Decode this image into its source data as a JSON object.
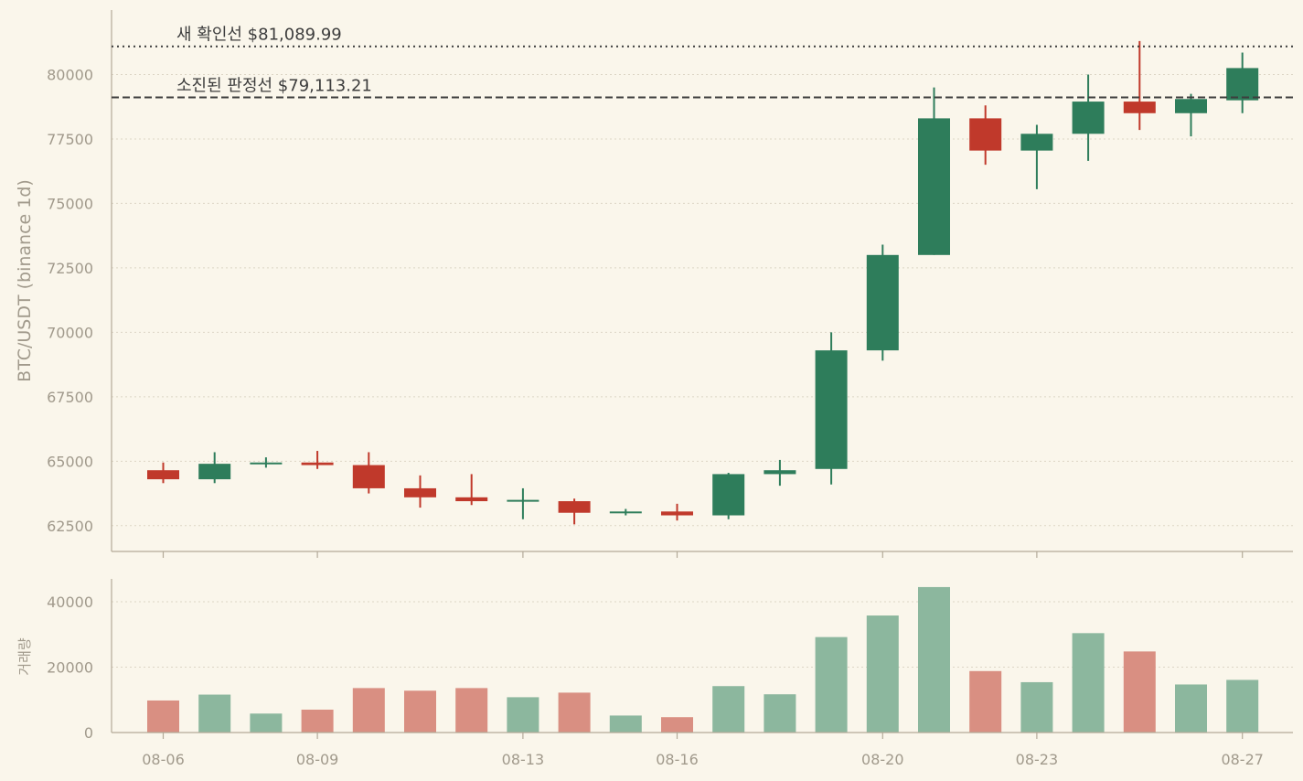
{
  "chart_data": [
    {
      "type": "candlestick",
      "ylabel": "BTC/USDT (binance 1d)",
      "ylim": [
        61500,
        82500
      ],
      "yticks": [
        62500,
        65000,
        67500,
        70000,
        72500,
        75000,
        77500,
        80000
      ],
      "grid": "horizontal dotted",
      "colors": {
        "up": "#2e7d5b",
        "down": "#c0392b"
      },
      "annotations": [
        {
          "label": "새 확인선 $81,089.99",
          "value": 81089.99,
          "style": "dotted"
        },
        {
          "label": "소진된 판정선 $79,113.21",
          "value": 79113.21,
          "style": "dashed"
        }
      ],
      "candles": [
        {
          "date": "08-06",
          "open": 64650,
          "high": 64950,
          "close": 64300,
          "low": 64150
        },
        {
          "date": "08-07",
          "open": 64300,
          "high": 65350,
          "close": 64900,
          "low": 64150
        },
        {
          "date": "08-08",
          "open": 64900,
          "high": 65150,
          "close": 64950,
          "low": 64750
        },
        {
          "date": "08-09",
          "open": 64950,
          "high": 65400,
          "close": 64850,
          "low": 64700
        },
        {
          "date": "08-10",
          "open": 64850,
          "high": 65350,
          "close": 63950,
          "low": 63750
        },
        {
          "date": "08-11",
          "open": 63950,
          "high": 64450,
          "close": 63600,
          "low": 63200
        },
        {
          "date": "08-12",
          "open": 63600,
          "high": 64500,
          "close": 63450,
          "low": 63300
        },
        {
          "date": "08-13",
          "open": 63450,
          "high": 63950,
          "close": 63500,
          "low": 62750
        },
        {
          "date": "08-14",
          "open": 63450,
          "high": 63550,
          "close": 63000,
          "low": 62550
        },
        {
          "date": "08-15",
          "open": 63000,
          "high": 63150,
          "close": 63050,
          "low": 62900
        },
        {
          "date": "08-16",
          "open": 63050,
          "high": 63350,
          "close": 62900,
          "low": 62700
        },
        {
          "date": "08-17",
          "open": 62900,
          "high": 64550,
          "close": 64500,
          "low": 62750
        },
        {
          "date": "08-18",
          "open": 64500,
          "high": 65050,
          "close": 64650,
          "low": 64050
        },
        {
          "date": "08-19",
          "open": 64700,
          "high": 70000,
          "close": 69300,
          "low": 64100
        },
        {
          "date": "08-20",
          "open": 69300,
          "high": 73400,
          "close": 73000,
          "low": 68900
        },
        {
          "date": "08-21",
          "open": 73000,
          "high": 79500,
          "close": 78300,
          "low": 73000
        },
        {
          "date": "08-22",
          "open": 78300,
          "high": 78800,
          "close": 77050,
          "low": 76500
        },
        {
          "date": "08-23",
          "open": 77050,
          "high": 78050,
          "close": 77700,
          "low": 75550
        },
        {
          "date": "08-24",
          "open": 77700,
          "high": 80000,
          "close": 78950,
          "low": 76650
        },
        {
          "date": "08-25",
          "open": 78950,
          "high": 81300,
          "close": 78500,
          "low": 77850
        },
        {
          "date": "08-26",
          "open": 78500,
          "high": 79250,
          "close": 79050,
          "low": 77600
        },
        {
          "date": "08-27",
          "open": 79000,
          "high": 80850,
          "close": 80250,
          "low": 78500
        }
      ]
    },
    {
      "type": "bar",
      "ylabel": "거래량",
      "ylim": [
        0,
        47000
      ],
      "yticks": [
        0,
        20000,
        40000
      ],
      "grid": "horizontal dotted",
      "colors": {
        "up": "#8cb79e",
        "down": "#d98f82"
      },
      "xticks": [
        "08-06",
        "08-09",
        "08-13",
        "08-16",
        "08-20",
        "08-23",
        "08-27"
      ],
      "categories": [
        "08-06",
        "08-07",
        "08-08",
        "08-09",
        "08-10",
        "08-11",
        "08-12",
        "08-13",
        "08-14",
        "08-15",
        "08-16",
        "08-17",
        "08-18",
        "08-19",
        "08-20",
        "08-21",
        "08-22",
        "08-23",
        "08-24",
        "08-25",
        "08-26",
        "08-27"
      ],
      "values": [
        9800,
        11600,
        5800,
        7000,
        13600,
        12800,
        13600,
        10800,
        12200,
        5200,
        4700,
        14200,
        11700,
        29200,
        35800,
        44500,
        18800,
        15400,
        30400,
        24800,
        14700,
        16100
      ]
    }
  ]
}
